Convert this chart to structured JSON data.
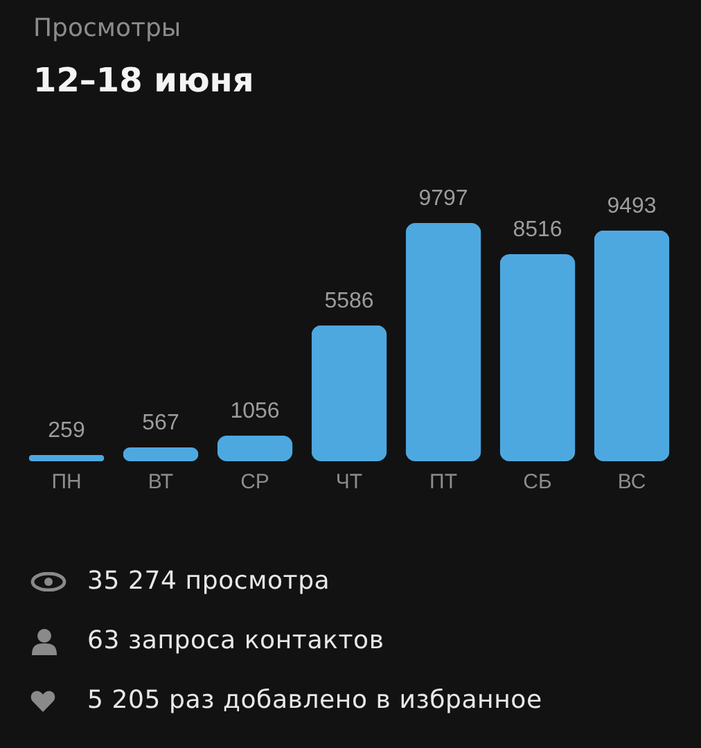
{
  "chart_data": {
    "type": "bar",
    "title": "Просмотры",
    "subtitle": "12–18 июня",
    "categories": [
      "ПН",
      "ВТ",
      "СР",
      "ЧТ",
      "ПТ",
      "СБ",
      "ВС"
    ],
    "values": [
      259,
      567,
      1056,
      5586,
      9797,
      8516,
      9493
    ],
    "color": "#4ea8e0",
    "data_labels": true,
    "annotations": [
      "35 274 просмотра",
      "63 запроса контактов",
      "5 205 раз добавлено в избранное"
    ]
  }
}
